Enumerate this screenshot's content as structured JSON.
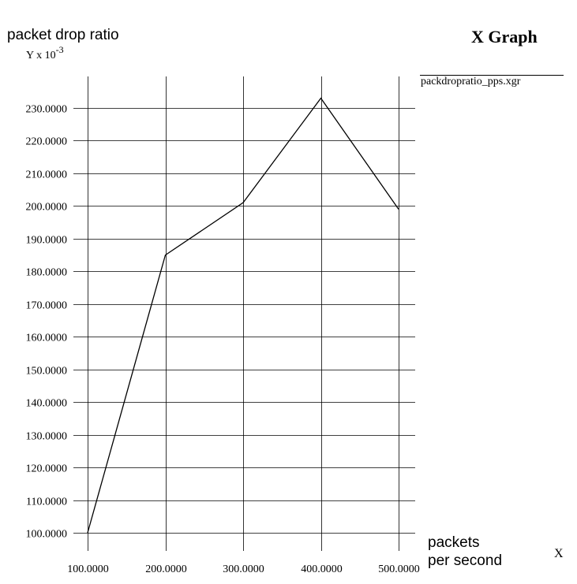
{
  "window": {
    "title": "X Graph"
  },
  "axes": {
    "y_label": "packet drop ratio",
    "y_scale_prefix": "Y x 10",
    "y_scale_exponent": "-3",
    "x_label_line1": "packets",
    "x_label_line2": "per second",
    "x_symbol": "X"
  },
  "chart_data": {
    "type": "line",
    "title": "X Graph",
    "xlabel": "packets per second",
    "ylabel": "packet drop ratio",
    "y_unit_multiplier": "Y x 10^-3",
    "x_ticks": [
      "100.0000",
      "200.0000",
      "300.0000",
      "400.0000",
      "500.0000"
    ],
    "x_tick_values": [
      100,
      200,
      300,
      400,
      500
    ],
    "y_ticks": [
      "100.0000",
      "110.0000",
      "120.0000",
      "130.0000",
      "140.0000",
      "150.0000",
      "160.0000",
      "170.0000",
      "180.0000",
      "190.0000",
      "200.0000",
      "210.0000",
      "220.0000",
      "230.0000"
    ],
    "y_tick_values": [
      100,
      110,
      120,
      130,
      140,
      150,
      160,
      170,
      180,
      190,
      200,
      210,
      220,
      230
    ],
    "xlim": [
      100,
      500
    ],
    "ylim": [
      100,
      230
    ],
    "grid": true,
    "legend_placement": "top-right",
    "series": [
      {
        "name": "packdropratio_pps.xgr",
        "color": "#000000",
        "points": [
          {
            "x": 100,
            "y": 100
          },
          {
            "x": 200,
            "y": 185
          },
          {
            "x": 300,
            "y": 201
          },
          {
            "x": 400,
            "y": 233
          },
          {
            "x": 500,
            "y": 199
          }
        ]
      }
    ]
  }
}
